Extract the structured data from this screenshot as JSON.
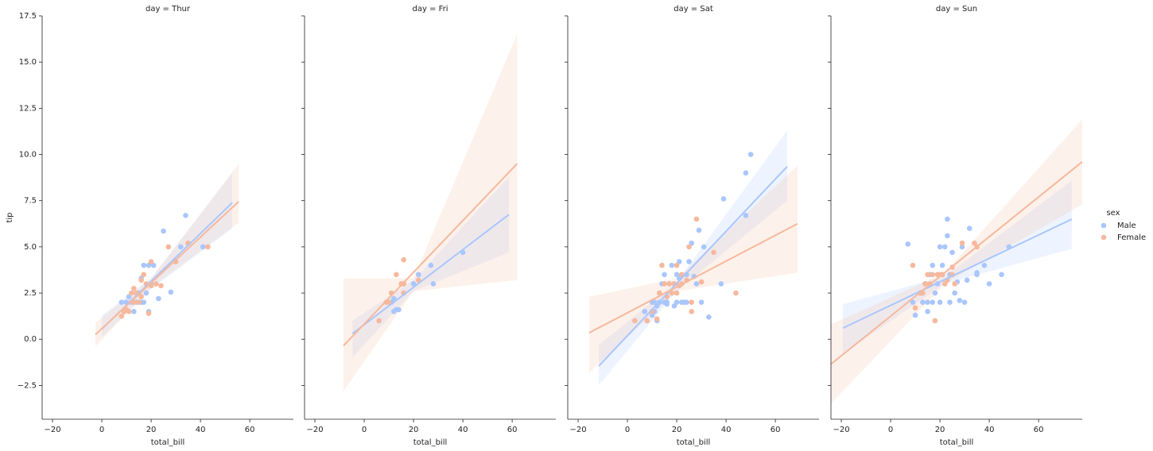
{
  "chart_data": [
    {
      "type": "scatter",
      "title": "day = Thur",
      "xlabel": "total_bill",
      "ylabel": "tip",
      "legend_title": "sex",
      "xlim": [
        -24.2,
        77.7
      ],
      "ylim": [
        -4.33,
        17.5
      ],
      "xticks": [
        {
          "value": -20,
          "label": "−20"
        },
        0,
        20,
        40,
        60
      ],
      "yticks": [
        {
          "value": -2.5,
          "label": "−2.5"
        },
        {
          "value": 0,
          "label": "0.0"
        },
        2.5,
        {
          "value": 5,
          "label": "5.0"
        },
        7.5,
        {
          "value": 10,
          "label": "10.0"
        },
        12.5,
        {
          "value": 15,
          "label": "15.0"
        },
        17.5
      ],
      "series": [
        {
          "name": "Male",
          "color": "#a9c6fd",
          "x": [
            8,
            10,
            11,
            12,
            14,
            15,
            16,
            17,
            18,
            19,
            19,
            20,
            21,
            23,
            25,
            28,
            32,
            34,
            41,
            17,
            13,
            16
          ],
          "values": [
            2,
            2,
            2.3,
            2,
            2,
            2.5,
            3.3,
            4,
            2.5,
            4,
            1.5,
            3,
            4,
            2.2,
            5.85,
            2.55,
            5,
            6.7,
            5,
            2,
            1.5,
            2
          ],
          "fit": {
            "x": [
              0,
              52.9
            ],
            "y": [
              0.55,
              7.39
            ]
          },
          "ci": {
            "x": [
              0,
              20,
              52.9
            ],
            "lower": [
              0.1,
              2.7,
              6.0
            ],
            "upper": [
              1.3,
              3.3,
              9.0
            ]
          }
        },
        {
          "name": "Female",
          "color": "#f7b89c",
          "x": [
            8,
            9,
            10,
            11,
            12,
            13,
            13,
            14,
            15,
            16,
            17,
            18,
            19,
            20,
            20,
            22,
            24,
            27,
            30,
            35,
            43,
            16
          ],
          "values": [
            1.25,
            1.5,
            1.6,
            1.5,
            2.5,
            2.75,
            2,
            2.5,
            2,
            2.3,
            3.5,
            3,
            1.4,
            4.2,
            2.9,
            3,
            2.9,
            5,
            4.2,
            5.2,
            5,
            3.2
          ],
          "fit": {
            "x": [
              -2.6,
              55.5
            ],
            "y": [
              0.25,
              7.45
            ]
          },
          "ci": {
            "x": [
              -2.6,
              20,
              55.5
            ],
            "lower": [
              -0.4,
              2.8,
              6.3
            ],
            "upper": [
              0.9,
              3.3,
              9.5
            ]
          }
        }
      ]
    },
    {
      "type": "scatter",
      "title": "day = Fri",
      "xlabel": "total_bill",
      "xlim": [
        -24.2,
        77.7
      ],
      "ylim": [
        -4.33,
        17.5
      ],
      "xticks": [
        {
          "value": -20,
          "label": "−20"
        },
        0,
        20,
        40,
        60
      ],
      "series": [
        {
          "name": "Male",
          "color": "#a9c6fd",
          "x": [
            11,
            12,
            12,
            13,
            14,
            20,
            22,
            27,
            28,
            40,
            16
          ],
          "values": [
            2,
            2.2,
            1.5,
            1.6,
            1.6,
            3,
            3.5,
            4,
            3,
            4.7,
            3
          ],
          "fit": {
            "x": [
              -4.8,
              58.7
            ],
            "y": [
              0.3,
              6.75
            ]
          },
          "ci": {
            "x": [
              -4.8,
              20,
              58.7
            ],
            "lower": [
              -1.0,
              2.6,
              4.7
            ],
            "upper": [
              1.0,
              3.2,
              8.8
            ]
          }
        },
        {
          "name": "Female",
          "color": "#f7b89c",
          "x": [
            6,
            9,
            10,
            11,
            13,
            15,
            16,
            16,
            22,
            16
          ],
          "values": [
            1,
            2,
            2,
            2.5,
            3.5,
            3,
            4.3,
            3,
            3.2,
            2.5
          ],
          "fit": {
            "x": [
              -8.4,
              62
            ],
            "y": [
              -0.35,
              9.5
            ]
          },
          "ci": {
            "x": [
              -8.4,
              20,
              62
            ],
            "lower": [
              -2.8,
              2.6,
              3.2
            ],
            "upper": [
              3.3,
              3.3,
              16.5
            ]
          }
        }
      ]
    },
    {
      "type": "scatter",
      "title": "day = Sat",
      "xlabel": "total_bill",
      "xlim": [
        -24.2,
        77.7
      ],
      "ylim": [
        -4.33,
        17.5
      ],
      "xticks": [
        {
          "value": -20,
          "label": "−20"
        },
        0,
        20,
        40,
        60
      ],
      "series": [
        {
          "name": "Male",
          "color": "#a9c6fd",
          "x": [
            7,
            8,
            10,
            10,
            11,
            12,
            13,
            14,
            15,
            15,
            16,
            17,
            18,
            18,
            19,
            20,
            20,
            21,
            22,
            23,
            24,
            25,
            26,
            27,
            28,
            29,
            30,
            31,
            33,
            38,
            39,
            48,
            48,
            50,
            16,
            13,
            11,
            12,
            19,
            24,
            21
          ],
          "values": [
            1.5,
            1,
            1.3,
            2,
            1.5,
            1.8,
            2,
            3,
            2,
            3.5,
            2,
            3,
            4,
            2.5,
            3,
            3.5,
            2,
            4.2,
            2,
            2,
            3.5,
            4.2,
            5.2,
            3.4,
            3,
            5.9,
            2,
            5,
            1.2,
            3,
            7.6,
            9,
            6.7,
            10,
            1.9,
            2.5,
            2,
            1,
            1.8,
            2,
            3.3
          ],
          "fit": {
            "x": [
              -11.6,
              64.8
            ],
            "y": [
              -1.45,
              9.35
            ]
          },
          "ci": {
            "x": [
              -11.6,
              20,
              64.8
            ],
            "lower": [
              -2.5,
              2.6,
              7.5
            ],
            "upper": [
              -0.3,
              3.1,
              11.3
            ]
          }
        },
        {
          "name": "Female",
          "color": "#f7b89c",
          "x": [
            3,
            8,
            10,
            12,
            13,
            14,
            15,
            16,
            17,
            18,
            19,
            20,
            21,
            22,
            24,
            25,
            26,
            26,
            28,
            30,
            35,
            44,
            20,
            22
          ],
          "values": [
            1,
            1,
            1.5,
            1.1,
            2.5,
            4,
            3,
            2.3,
            3,
            2.5,
            3,
            4,
            2.9,
            3.5,
            3.2,
            5,
            2,
            1.5,
            6.5,
            3.1,
            4.7,
            2.5,
            2.5,
            3
          ],
          "fit": {
            "x": [
              -15.5,
              69
            ],
            "y": [
              0.35,
              6.25
            ]
          },
          "ci": {
            "x": [
              -15.5,
              20,
              69
            ],
            "lower": [
              -1.8,
              2.6,
              3.6
            ],
            "upper": [
              2.3,
              3.3,
              9.4
            ]
          }
        }
      ]
    },
    {
      "type": "scatter",
      "title": "day = Sun",
      "xlabel": "total_bill",
      "xlim": [
        -24.2,
        77.7
      ],
      "ylim": [
        -4.33,
        17.5
      ],
      "xticks": [
        {
          "value": -20,
          "label": "−20"
        },
        0,
        20,
        40,
        60
      ],
      "series": [
        {
          "name": "Male",
          "color": "#a9c6fd",
          "x": [
            7,
            9,
            10,
            12,
            13,
            14,
            15,
            15,
            16,
            17,
            17,
            18,
            19,
            20,
            20,
            21,
            22,
            23,
            23,
            24,
            25,
            26,
            27,
            28,
            29,
            30,
            31,
            32,
            35,
            38,
            40,
            45,
            48,
            24,
            21,
            35
          ],
          "values": [
            5.15,
            2,
            1.3,
            2.5,
            2,
            3,
            2,
            1.5,
            3.5,
            4,
            2,
            2.5,
            3,
            5,
            2,
            4,
            5,
            6.5,
            5.6,
            3.5,
            4.7,
            2.5,
            3.1,
            2.1,
            5,
            2,
            3.2,
            6,
            3.6,
            4,
            3,
            3.5,
            5,
            2,
            3.5,
            3.5
          ],
          "fit": {
            "x": [
              -19.4,
              73.5
            ],
            "y": [
              0.6,
              6.5
            ]
          },
          "ci": {
            "x": [
              -19.4,
              22,
              73.5
            ],
            "lower": [
              -0.8,
              3.0,
              4.9
            ],
            "upper": [
              1.9,
              3.4,
              8.6
            ]
          }
        },
        {
          "name": "Female",
          "color": "#f7b89c",
          "x": [
            9,
            10,
            12,
            14,
            15,
            16,
            17,
            18,
            19,
            20,
            22,
            23,
            25,
            25,
            29,
            34,
            35,
            26,
            13,
            21
          ],
          "values": [
            4,
            1.7,
            2.5,
            3,
            3.5,
            3,
            3.5,
            1,
            3.5,
            3.5,
            3,
            3.2,
            3.5,
            3.9,
            5.2,
            5.2,
            5,
            3,
            2.5,
            3.5
          ],
          "fit": {
            "x": [
              -24.2,
              77.7
            ],
            "y": [
              -1.35,
              9.6
            ]
          },
          "ci": {
            "x": [
              -24.2,
              22,
              77.7
            ],
            "lower": [
              -3.5,
              3.0,
              7.3
            ],
            "upper": [
              0.8,
              3.6,
              11.9
            ]
          }
        }
      ]
    }
  ]
}
